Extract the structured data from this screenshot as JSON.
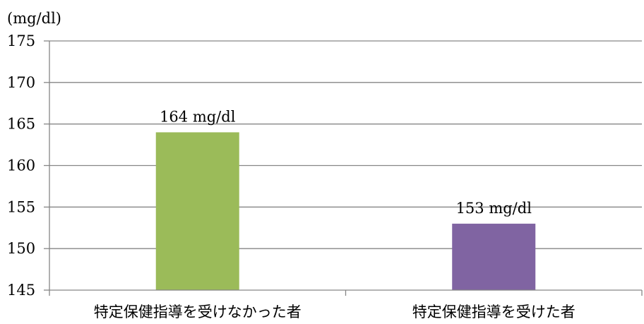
{
  "chart_data": {
    "type": "bar",
    "unit_label": "(mg/dl)",
    "categories": [
      "特定保健指導を受けなかった者",
      "特定保健指導を受けた者"
    ],
    "values": [
      164,
      153
    ],
    "data_labels": [
      "164 mg/dl",
      "153 mg/dl"
    ],
    "bar_colors": [
      "#9BBB59",
      "#8064A2"
    ],
    "ylim": [
      145,
      175
    ],
    "yticks": [
      145,
      150,
      155,
      160,
      165,
      170,
      175
    ],
    "grid": true,
    "legend": "none"
  }
}
